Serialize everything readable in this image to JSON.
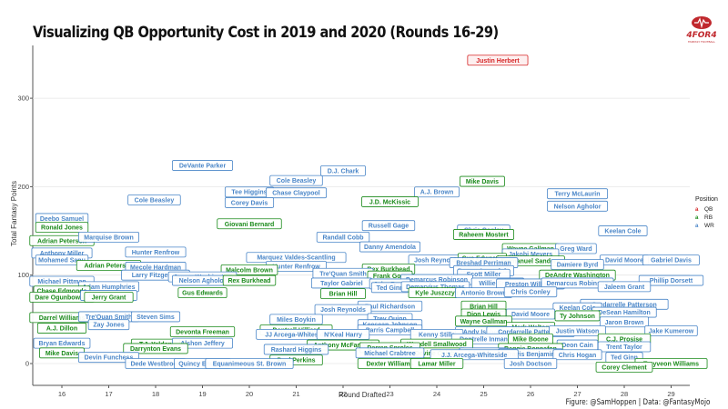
{
  "title": "Visualizing QB Opportunity Cost in 2019 and 2020 (Rounds 16-29)",
  "logo": {
    "name": "4FOR4",
    "subtitle": "FANTASY FOOTBALL"
  },
  "caption": "Figure: @SamHoppen | Data: @FantasyMojo",
  "chart_data": {
    "type": "scatter",
    "title": "Visualizing QB Opportunity Cost in 2019 and 2020 (Rounds 16-29)",
    "xlabel": "Round Drafted",
    "ylabel": "Total Fantasy Points",
    "xlim": [
      15.3,
      29.6
    ],
    "ylim": [
      -25,
      360
    ],
    "xticks": [
      16,
      17,
      18,
      19,
      20,
      21,
      22,
      23,
      24,
      25,
      26,
      27,
      28,
      29
    ],
    "yticks": [
      0,
      100,
      200,
      300
    ],
    "grid": "horizontal",
    "legend": {
      "title": "Position",
      "placement": "right",
      "entries": [
        {
          "label": "QB",
          "color": "#d62728"
        },
        {
          "label": "RB",
          "color": "#1a8a1a"
        },
        {
          "label": "WR",
          "color": "#4a86c8"
        }
      ]
    },
    "points": [
      {
        "name": "Justin Herbert",
        "pos": "QB",
        "round": 25.3,
        "pts": 343
      },
      {
        "name": "DeVante Parker",
        "pos": "WR",
        "round": 19.0,
        "pts": 224
      },
      {
        "name": "D.J. Chark",
        "pos": "WR",
        "round": 22.0,
        "pts": 218
      },
      {
        "name": "Cole Beasley",
        "pos": "WR",
        "round": 21.0,
        "pts": 207
      },
      {
        "name": "Mike Davis",
        "pos": "RB",
        "round": 24.97,
        "pts": 206
      },
      {
        "name": "Terry McLaurin",
        "pos": "WR",
        "round": 27.0,
        "pts": 192
      },
      {
        "name": "Tee Higgins",
        "pos": "WR",
        "round": 20.0,
        "pts": 194
      },
      {
        "name": "Chase Claypool",
        "pos": "WR",
        "round": 21.0,
        "pts": 193
      },
      {
        "name": "A.J. Brown",
        "pos": "WR",
        "round": 24.0,
        "pts": 194
      },
      {
        "name": "Cole Beasley",
        "pos": "WR",
        "round": 17.97,
        "pts": 185
      },
      {
        "name": "Corey Davis",
        "pos": "WR",
        "round": 20.0,
        "pts": 182
      },
      {
        "name": "J.D. McKissic",
        "pos": "RB",
        "round": 23.0,
        "pts": 183
      },
      {
        "name": "Nelson Agholor",
        "pos": "WR",
        "round": 27.0,
        "pts": 178
      },
      {
        "name": "Deebo Samuel",
        "pos": "WR",
        "round": 16.0,
        "pts": 164
      },
      {
        "name": "Giovani Bernard",
        "pos": "RB",
        "round": 20.0,
        "pts": 158
      },
      {
        "name": "Russell Gage",
        "pos": "WR",
        "round": 22.97,
        "pts": 156
      },
      {
        "name": "Ronald Jones",
        "pos": "RB",
        "round": 16.0,
        "pts": 154
      },
      {
        "name": "Keelan Cole",
        "pos": "WR",
        "round": 27.97,
        "pts": 150
      },
      {
        "name": "Chris Conley",
        "pos": "WR",
        "round": 25.0,
        "pts": 151
      },
      {
        "name": "Raheem Mostert",
        "pos": "RB",
        "round": 25.0,
        "pts": 146
      },
      {
        "name": "Randall Cobb",
        "pos": "WR",
        "round": 22.0,
        "pts": 143
      },
      {
        "name": "Adrian Peterson",
        "pos": "RB",
        "round": 16.0,
        "pts": 139
      },
      {
        "name": "Marquise Brown",
        "pos": "WR",
        "round": 17.0,
        "pts": 143
      },
      {
        "name": "Danny Amendola",
        "pos": "WR",
        "round": 23.0,
        "pts": 132
      },
      {
        "name": "Wayne Gallman",
        "pos": "RB",
        "round": 26.0,
        "pts": 130
      },
      {
        "name": "Greg Ward",
        "pos": "WR",
        "round": 26.97,
        "pts": 130
      },
      {
        "name": "Jakobi Meyers",
        "pos": "WR",
        "round": 26.0,
        "pts": 124
      },
      {
        "name": "Hunter Renfrow",
        "pos": "WR",
        "round": 18.0,
        "pts": 126
      },
      {
        "name": "Anthony Miller",
        "pos": "WR",
        "round": 16.0,
        "pts": 125
      },
      {
        "name": "Mohamed Sanu",
        "pos": "WR",
        "round": 16.0,
        "pts": 117
      },
      {
        "name": "Marquez Valdes-Scantling",
        "pos": "WR",
        "round": 21.0,
        "pts": 120
      },
      {
        "name": "Josh Reynolds",
        "pos": "WR",
        "round": 24.0,
        "pts": 117
      },
      {
        "name": "Gus Edwards",
        "pos": "RB",
        "round": 24.97,
        "pts": 119
      },
      {
        "name": "Emmanuel Sanders",
        "pos": "RB",
        "round": 26.0,
        "pts": 116
      },
      {
        "name": "David Moore",
        "pos": "WR",
        "round": 28.0,
        "pts": 117
      },
      {
        "name": "Gabriel Davis",
        "pos": "WR",
        "round": 29.0,
        "pts": 117
      },
      {
        "name": "Damiere Byrd",
        "pos": "WR",
        "round": 27.0,
        "pts": 112
      },
      {
        "name": "Breshad Perriman",
        "pos": "WR",
        "round": 25.0,
        "pts": 114
      },
      {
        "name": "Adrian Peterson",
        "pos": "RB",
        "round": 17.0,
        "pts": 111
      },
      {
        "name": "Mecole Hardman",
        "pos": "WR",
        "round": 18.0,
        "pts": 109
      },
      {
        "name": "Hunter Renfrow",
        "pos": "WR",
        "round": 21.0,
        "pts": 110
      },
      {
        "name": "Malcolm Brown",
        "pos": "RB",
        "round": 20.0,
        "pts": 106
      },
      {
        "name": "Rex Burkhead",
        "pos": "RB",
        "round": 22.97,
        "pts": 107
      },
      {
        "name": "Danny Amendola",
        "pos": "WR",
        "round": 25.0,
        "pts": 105
      },
      {
        "name": "Scott Miller",
        "pos": "WR",
        "round": 25.0,
        "pts": 101
      },
      {
        "name": "DeAndre Washington",
        "pos": "RB",
        "round": 27.0,
        "pts": 100
      },
      {
        "name": "Larry Fitzgerald",
        "pos": "WR",
        "round": 18.0,
        "pts": 100
      },
      {
        "name": "James Washington",
        "pos": "WR",
        "round": 19.0,
        "pts": 98
      },
      {
        "name": "Tre'Quan Smith",
        "pos": "WR",
        "round": 22.0,
        "pts": 102
      },
      {
        "name": "Frank Gore",
        "pos": "RB",
        "round": 23.0,
        "pts": 99
      },
      {
        "name": "Demarcus Robinson",
        "pos": "WR",
        "round": 24.0,
        "pts": 95
      },
      {
        "name": "Nelson Agholor",
        "pos": "WR",
        "round": 19.0,
        "pts": 94
      },
      {
        "name": "Rex Burkhead",
        "pos": "RB",
        "round": 20.0,
        "pts": 94
      },
      {
        "name": "Michael Pittman",
        "pos": "WR",
        "round": 16.0,
        "pts": 93
      },
      {
        "name": "Phillip Dorsett",
        "pos": "WR",
        "round": 29.0,
        "pts": 94
      },
      {
        "name": "Willie Snead",
        "pos": "WR",
        "round": 25.3,
        "pts": 91
      },
      {
        "name": "Preston Williams",
        "pos": "WR",
        "round": 26.0,
        "pts": 90
      },
      {
        "name": "Demarcus Robinson",
        "pos": "WR",
        "round": 27.0,
        "pts": 91
      },
      {
        "name": "Taylor Gabriel",
        "pos": "WR",
        "round": 21.97,
        "pts": 91
      },
      {
        "name": "John Ross",
        "pos": "WR",
        "round": 23.0,
        "pts": 90
      },
      {
        "name": "Ted Ginn",
        "pos": "WR",
        "round": 23.0,
        "pts": 86
      },
      {
        "name": "Demaryius Thomas",
        "pos": "WR",
        "round": 23.97,
        "pts": 87
      },
      {
        "name": "Jaleem Grant",
        "pos": "WR",
        "round": 28.0,
        "pts": 87
      },
      {
        "name": "Adam Humphries",
        "pos": "WR",
        "round": 17.0,
        "pts": 87
      },
      {
        "name": "Chase Edmonds",
        "pos": "RB",
        "round": 16.0,
        "pts": 82
      },
      {
        "name": "Gus Edwards",
        "pos": "RB",
        "round": 19.0,
        "pts": 80
      },
      {
        "name": "Brian Hill",
        "pos": "RB",
        "round": 22.0,
        "pts": 79
      },
      {
        "name": "Kyle Juszczyk",
        "pos": "RB",
        "round": 24.0,
        "pts": 80
      },
      {
        "name": "Antonio Brown",
        "pos": "WR",
        "round": 25.0,
        "pts": 80
      },
      {
        "name": "Chris Conley",
        "pos": "WR",
        "round": 26.0,
        "pts": 81
      },
      {
        "name": "Dare Ogunbowale",
        "pos": "RB",
        "round": 16.0,
        "pts": 75
      },
      {
        "name": "Albert Wilson",
        "pos": "WR",
        "round": 17.0,
        "pts": 77
      },
      {
        "name": "Jerry Grant",
        "pos": "RB",
        "round": 17.0,
        "pts": 75
      },
      {
        "name": "Cordarrelle Patterson",
        "pos": "WR",
        "round": 28.0,
        "pts": 67
      },
      {
        "name": "Paul Richardson",
        "pos": "WR",
        "round": 23.0,
        "pts": 65
      },
      {
        "name": "Brian Hill",
        "pos": "RB",
        "round": 25.0,
        "pts": 65
      },
      {
        "name": "Josh Reynolds",
        "pos": "WR",
        "round": 22.0,
        "pts": 61
      },
      {
        "name": "Keelan Cole",
        "pos": "WR",
        "round": 27.0,
        "pts": 63
      },
      {
        "name": "DeSean Hamilton",
        "pos": "WR",
        "round": 28.0,
        "pts": 58
      },
      {
        "name": "David Moore",
        "pos": "WR",
        "round": 26.0,
        "pts": 56
      },
      {
        "name": "Dion Lewis",
        "pos": "RB",
        "round": 25.0,
        "pts": 56
      },
      {
        "name": "Ty Johnson",
        "pos": "RB",
        "round": 27.0,
        "pts": 54
      },
      {
        "name": "Darrel Williams",
        "pos": "RB",
        "round": 16.0,
        "pts": 52
      },
      {
        "name": "Tre'Quan Smith",
        "pos": "WR",
        "round": 17.0,
        "pts": 53
      },
      {
        "name": "Steven Sims",
        "pos": "WR",
        "round": 18.0,
        "pts": 53
      },
      {
        "name": "Miles Boykin",
        "pos": "WR",
        "round": 21.0,
        "pts": 50
      },
      {
        "name": "Trey Quinn",
        "pos": "WR",
        "round": 23.0,
        "pts": 51
      },
      {
        "name": "Wayne Gallman",
        "pos": "RB",
        "round": 25.0,
        "pts": 48
      },
      {
        "name": "Jaron Brown",
        "pos": "WR",
        "round": 28.0,
        "pts": 47
      },
      {
        "name": "Zay Jones",
        "pos": "WR",
        "round": 17.0,
        "pts": 44
      },
      {
        "name": "Keesean Johnson",
        "pos": "WR",
        "round": 23.0,
        "pts": 44
      },
      {
        "name": "Mark Walton",
        "pos": "RB",
        "round": 26.0,
        "pts": 41
      },
      {
        "name": "A.J. Dillon",
        "pos": "RB",
        "round": 16.0,
        "pts": 40
      },
      {
        "name": "Dontrell Hilliard",
        "pos": "RB",
        "round": 21.0,
        "pts": 38
      },
      {
        "name": "Parris Campbell",
        "pos": "WR",
        "round": 23.0,
        "pts": 38
      },
      {
        "name": "Andy Isabella",
        "pos": "WR",
        "round": 25.0,
        "pts": 36
      },
      {
        "name": "Cordarrelle Patterson",
        "pos": "WR",
        "round": 26.0,
        "pts": 36
      },
      {
        "name": "Justin Watson",
        "pos": "WR",
        "round": 27.0,
        "pts": 37
      },
      {
        "name": "Jake Kumerow",
        "pos": "WR",
        "round": 29.0,
        "pts": 37
      },
      {
        "name": "Devonta Freeman",
        "pos": "RB",
        "round": 19.0,
        "pts": 36
      },
      {
        "name": "JJ Arcega-Whiteside",
        "pos": "WR",
        "round": 21.0,
        "pts": 33
      },
      {
        "name": "N'Keal Harry",
        "pos": "WR",
        "round": 22.0,
        "pts": 33
      },
      {
        "name": "Kenny Stills",
        "pos": "WR",
        "round": 24.0,
        "pts": 33
      },
      {
        "name": "Dontrelle Inman",
        "pos": "WR",
        "round": 25.0,
        "pts": 28
      },
      {
        "name": "C.J. Prosise",
        "pos": "RB",
        "round": 28.0,
        "pts": 28
      },
      {
        "name": "Mike Boone",
        "pos": "RB",
        "round": 26.0,
        "pts": 28
      },
      {
        "name": "Bryan Edwards",
        "pos": "WR",
        "round": 16.0,
        "pts": 23
      },
      {
        "name": "T.J. Yeldon",
        "pos": "RB",
        "round": 18.0,
        "pts": 22
      },
      {
        "name": "Alshon Jeffery",
        "pos": "WR",
        "round": 19.0,
        "pts": 23
      },
      {
        "name": "Wendell Smallwood",
        "pos": "RB",
        "round": 24.0,
        "pts": 22
      },
      {
        "name": "Anthony McFarland",
        "pos": "RB",
        "round": 22.0,
        "pts": 21
      },
      {
        "name": "Deon Cain",
        "pos": "WR",
        "round": 27.0,
        "pts": 21
      },
      {
        "name": "Darren Sproles",
        "pos": "RB",
        "round": 23.0,
        "pts": 18
      },
      {
        "name": "Trent Taylor",
        "pos": "WR",
        "round": 28.0,
        "pts": 19
      },
      {
        "name": "Rashard Higgins",
        "pos": "WR",
        "round": 21.0,
        "pts": 16
      },
      {
        "name": "Darrynton Evans",
        "pos": "RB",
        "round": 18.0,
        "pts": 17
      },
      {
        "name": "Reggie Bonnafon",
        "pos": "RB",
        "round": 26.0,
        "pts": 17
      },
      {
        "name": "Mike Davis",
        "pos": "RB",
        "round": 16.0,
        "pts": 12
      },
      {
        "name": "Devine Ozigbo",
        "pos": "RB",
        "round": 24.0,
        "pts": 12
      },
      {
        "name": "J.J. Nelson",
        "pos": "WR",
        "round": 25.0,
        "pts": 12
      },
      {
        "name": "Travis Benjamin",
        "pos": "WR",
        "round": 26.0,
        "pts": 11
      },
      {
        "name": "Chris Hogan",
        "pos": "WR",
        "round": 27.0,
        "pts": 10
      },
      {
        "name": "Michael Crabtree",
        "pos": "WR",
        "round": 23.0,
        "pts": 12
      },
      {
        "name": "J.J. Arcega-Whiteside",
        "pos": "WR",
        "round": 24.8,
        "pts": 10
      },
      {
        "name": "Ted Ginn",
        "pos": "WR",
        "round": 28.0,
        "pts": 7
      },
      {
        "name": "Devin Funchess",
        "pos": "WR",
        "round": 17.0,
        "pts": 7
      },
      {
        "name": "Trayveon Williams",
        "pos": "RB",
        "round": 29.0,
        "pts": 0
      },
      {
        "name": "Paul Perkins",
        "pos": "RB",
        "round": 21.0,
        "pts": 4
      },
      {
        "name": "Dexter Williams",
        "pos": "RB",
        "round": 23.0,
        "pts": 0
      },
      {
        "name": "Lamar Miller",
        "pos": "RB",
        "round": 24.0,
        "pts": 0
      },
      {
        "name": "Josh Doctson",
        "pos": "WR",
        "round": 26.0,
        "pts": 0
      },
      {
        "name": "Dede Westbrook",
        "pos": "WR",
        "round": 18.0,
        "pts": 0
      },
      {
        "name": "Quincy Enunwa",
        "pos": "WR",
        "round": 19.0,
        "pts": 0
      },
      {
        "name": "Equanimeous St. Brown",
        "pos": "WR",
        "round": 20.0,
        "pts": 0
      },
      {
        "name": "Corey Clement",
        "pos": "RB",
        "round": 28.0,
        "pts": -4
      }
    ]
  }
}
